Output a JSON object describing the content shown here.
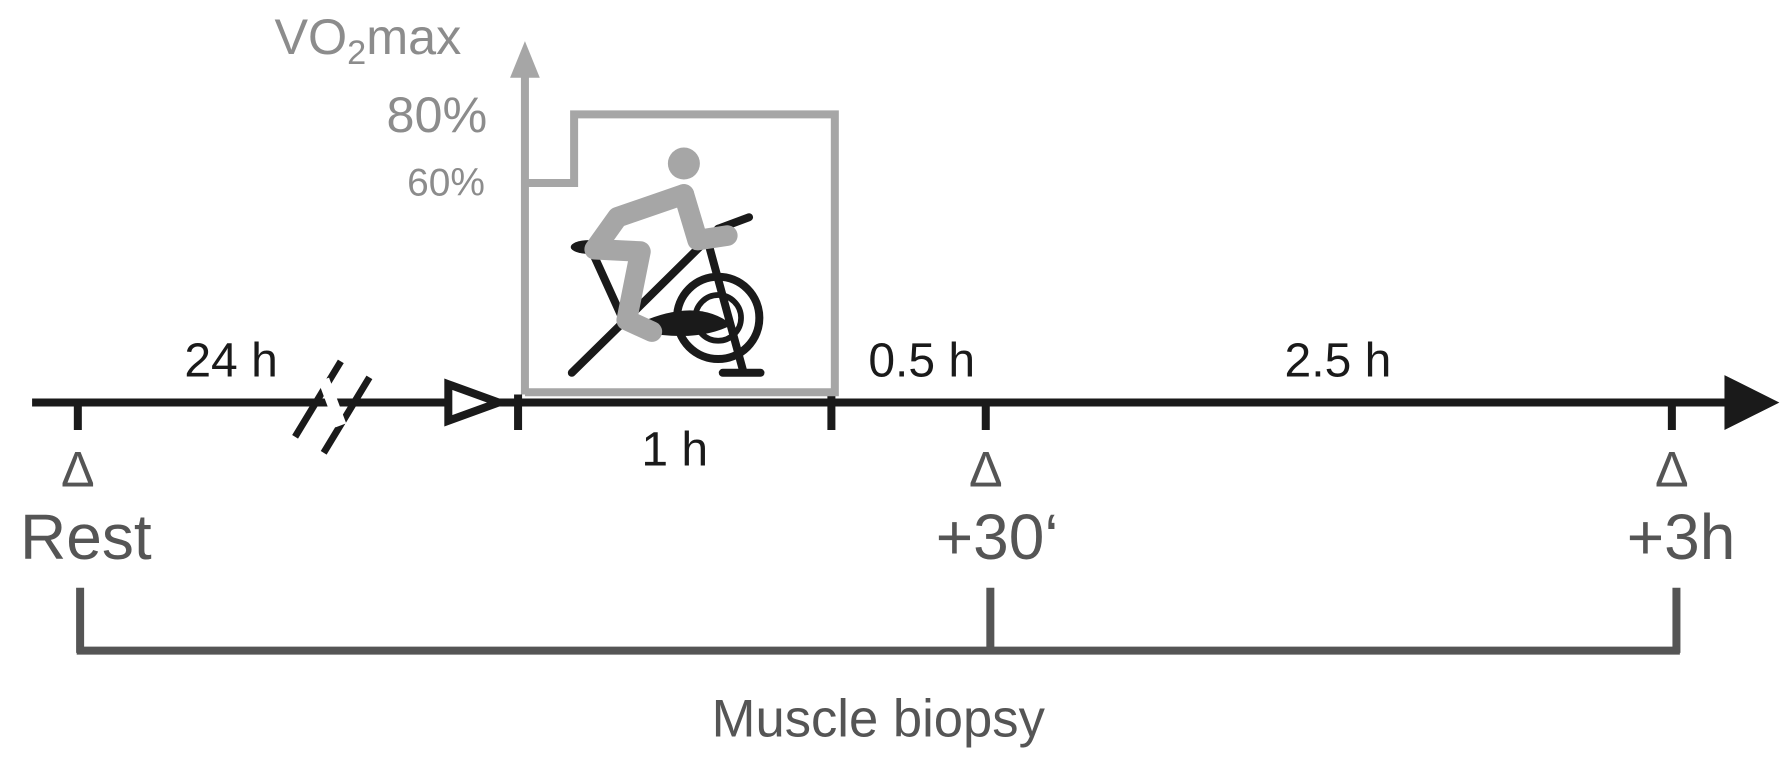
{
  "intensity_axis": {
    "label": {
      "text": "VO",
      "subscript": "2",
      "suffix": "max"
    },
    "levels": [
      "80%",
      "60%"
    ]
  },
  "timeline": {
    "intervals": [
      "24 h",
      "1 h",
      "0.5 h",
      "2.5 h"
    ]
  },
  "time_points": [
    {
      "marker": "Δ",
      "label": "Rest"
    },
    {
      "marker": "Δ",
      "label": "+30‘"
    },
    {
      "marker": "Δ",
      "label": "+3h"
    }
  ],
  "bracket": {
    "label": "Muscle biopsy"
  }
}
